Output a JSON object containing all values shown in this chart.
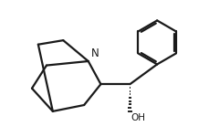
{
  "background_color": "#ffffff",
  "line_color": "#1a1a1a",
  "line_width": 1.6,
  "figsize": [
    2.3,
    1.5
  ],
  "dpi": 100,
  "xlim": [
    0.0,
    10.0
  ],
  "ylim": [
    0.0,
    6.5
  ]
}
